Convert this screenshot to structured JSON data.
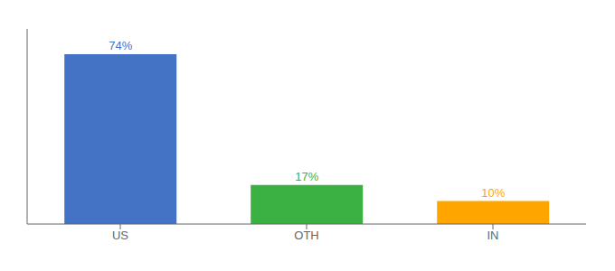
{
  "chart_data": {
    "type": "bar",
    "categories": [
      "US",
      "OTH",
      "IN"
    ],
    "values": [
      74,
      17,
      10
    ],
    "value_labels": [
      "74%",
      "17%",
      "10%"
    ],
    "data_labels": true,
    "colors": [
      "#4472C4",
      "#3BB143",
      "#FFA500"
    ],
    "ylim": [
      0,
      85
    ],
    "tick_labels": "x",
    "grid": false
  }
}
